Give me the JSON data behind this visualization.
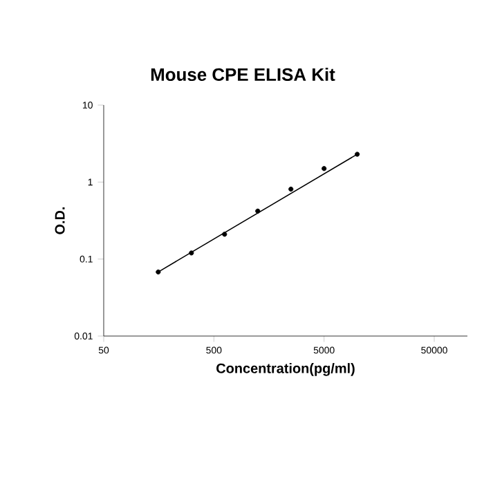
{
  "chart_data": {
    "type": "scatter",
    "title": "Mouse CPE ELISA Kit",
    "xlabel": "Concentration(pg/ml)",
    "ylabel": "O.D.",
    "log": "xy",
    "xlim": [
      50,
      100000
    ],
    "xticks": [
      50,
      500,
      5000,
      50000
    ],
    "ylim": [
      0.01,
      10
    ],
    "yticks": [
      0.01,
      0.1,
      1,
      10
    ],
    "marker": "circle",
    "series": [
      {
        "color": "#000000",
        "x": [
          156.25,
          312.5,
          625,
          1250,
          2500,
          5000,
          10000
        ],
        "values": [
          0.068,
          0.12,
          0.21,
          0.42,
          0.81,
          1.5,
          2.3
        ]
      },
      {
        "type": "line",
        "color": "#000000",
        "marker": "none",
        "line_style": "solid",
        "x": [
          156.25,
          10000
        ],
        "values": [
          0.068,
          2.3
        ]
      }
    ]
  }
}
